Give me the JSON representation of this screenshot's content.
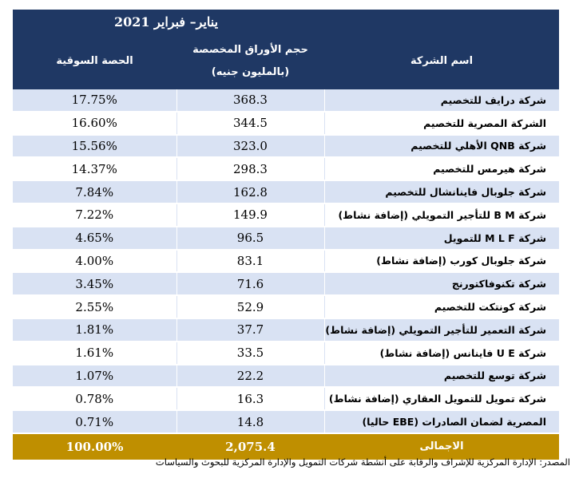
{
  "header": {
    "period": "يناير– فبراير 2021",
    "col_share": "الحصة السوقية",
    "col_volume_line1": "حجم الأوراق المخصصة",
    "col_volume_line2": "(بالمليون جنيه)",
    "col_company": "اسم الشركة"
  },
  "rows": [
    {
      "share": "17.75%",
      "volume": "368.3",
      "name": "شركة درايف للتخصيم"
    },
    {
      "share": "16.60%",
      "volume": "344.5",
      "name": "الشركة المصرية للتخصيم"
    },
    {
      "share": "15.56%",
      "volume": "323.0",
      "name": "شركة QNB الأهلي للتخصيم"
    },
    {
      "share": "14.37%",
      "volume": "298.3",
      "name": "شركة هيرمس للتخصيم"
    },
    {
      "share": "7.84%",
      "volume": "162.8",
      "name": "شركة جلوبال فاينانشال للتخصيم"
    },
    {
      "share": "7.22%",
      "volume": "149.9",
      "name": "شركة B M للتأجير التمويلي (إضافة نشاط)"
    },
    {
      "share": "4.65%",
      "volume": "96.5",
      "name": "شركة M L F للتمويل"
    },
    {
      "share": "4.00%",
      "volume": "83.1",
      "name": "شركة جلوبال كورب (إضافة نشاط)"
    },
    {
      "share": "3.45%",
      "volume": "71.6",
      "name": "شركة تكنوفاكتورنج"
    },
    {
      "share": "2.55%",
      "volume": "52.9",
      "name": "شركة كونتكت للتخصيم"
    },
    {
      "share": "1.81%",
      "volume": "37.7",
      "name": "شركة التعمير للتأجير التمويلي (إضافة نشاط)"
    },
    {
      "share": "1.61%",
      "volume": "33.5",
      "name": "شركة U E فاينانس (إضافة نشاط)"
    },
    {
      "share": "1.07%",
      "volume": "22.2",
      "name": "شركة توسع للتخصيم"
    },
    {
      "share": "0.78%",
      "volume": "16.3",
      "name": "شركة تمويل للتمويل العقاري (إضافة نشاط)"
    },
    {
      "share": "0.71%",
      "volume": "14.8",
      "name": "المصرية لضمان الصادرات (EBE حاليا)"
    }
  ],
  "total": {
    "share": "100.00%",
    "volume": "2,075.4",
    "label": "الاجمالى"
  },
  "source": "المصدر: الإدارة المركزية للإشراف والرقابة على أنشطة شركات التمويل والإدارة المركزية للبحوث والسياسات",
  "colors": {
    "header_bg": "#1f3864",
    "row_alt_bg": "#d9e2f3",
    "total_bg": "#bf8f00"
  }
}
